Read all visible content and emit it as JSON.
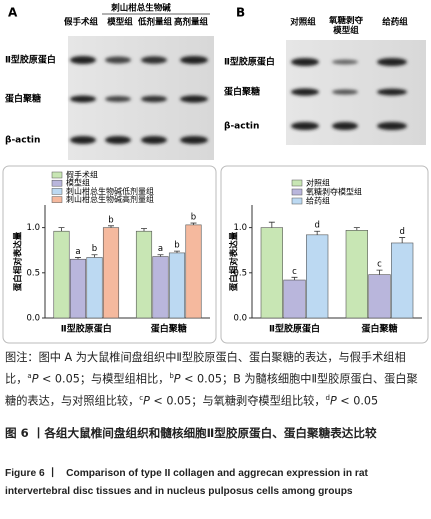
{
  "blots": [
    {
      "panel": "A",
      "header": "刺山柑总生物碱",
      "columns": [
        "假手术组",
        "模型组",
        "低剂量组",
        "高剂量组"
      ],
      "rows": [
        "Ⅱ型胶原蛋白",
        "蛋白聚糖",
        "β-actin"
      ]
    },
    {
      "panel": "B",
      "columns": [
        "对照组",
        "氧糖剥夺模型组",
        "给药组"
      ],
      "rows": [
        "Ⅱ型胶原蛋白",
        "蛋白聚糖",
        "β-actin"
      ]
    }
  ],
  "chart_data": [
    {
      "type": "bar",
      "ylabel": "蛋白相对表达量",
      "categories": [
        "Ⅱ型胶原蛋白",
        "蛋白聚糖"
      ],
      "ylim": [
        0,
        1.25
      ],
      "yticks": [
        {
          "value": 0,
          "label": "0.0"
        },
        {
          "value": 0.5,
          "label": "0.5"
        },
        {
          "value": 1,
          "label": "1.0"
        }
      ],
      "series": [
        {
          "name": "假手术组",
          "color": "#c8e6b4",
          "values": [
            0.96,
            0.96
          ],
          "errors": [
            0.04,
            0.03
          ]
        },
        {
          "name": "模型组",
          "color": "#b9b6dc",
          "values": [
            0.65,
            0.68
          ],
          "errors": [
            0.02,
            0.02
          ],
          "labels": [
            "a",
            "a"
          ]
        },
        {
          "name": "刺山柑总生物碱低剂量组",
          "color": "#bcd9f2",
          "values": [
            0.67,
            0.72
          ],
          "errors": [
            0.03,
            0.02
          ],
          "labels": [
            "b",
            "b"
          ]
        },
        {
          "name": "刺山柑总生物碱高剂量组",
          "color": "#f5b99e",
          "values": [
            1.0,
            1.03
          ],
          "errors": [
            0.02,
            0.02
          ],
          "labels": [
            "b",
            "b"
          ]
        }
      ]
    },
    {
      "type": "bar",
      "ylabel": "蛋白相对表达量",
      "categories": [
        "Ⅱ型胶原蛋白",
        "蛋白聚糖"
      ],
      "ylim": [
        0,
        1.25
      ],
      "yticks": [
        {
          "value": 0,
          "label": "0.0"
        },
        {
          "value": 0.5,
          "label": "0.5"
        },
        {
          "value": 1,
          "label": "1.0"
        }
      ],
      "series": [
        {
          "name": "对照组",
          "color": "#c8e6b4",
          "values": [
            1.0,
            0.97
          ],
          "errors": [
            0.06,
            0.03
          ]
        },
        {
          "name": "氧糖剥夺模型组",
          "color": "#b9b6dc",
          "values": [
            0.42,
            0.48
          ],
          "errors": [
            0.03,
            0.05
          ],
          "labels": [
            "c",
            "c"
          ]
        },
        {
          "name": "给药组",
          "color": "#bcd9f2",
          "values": [
            0.92,
            0.83
          ],
          "errors": [
            0.04,
            0.06
          ],
          "labels": [
            "d",
            "d"
          ]
        }
      ]
    }
  ],
  "caption": {
    "note": [
      "图注：图中 A 为大鼠椎间盘组织中Ⅱ型胶原蛋白、蛋白聚糖的表达，与假手术组相比，",
      "a",
      "P",
      " < 0.05；与模型组相比，",
      "b",
      "P",
      " < 0.05；B 为髓核细胞中Ⅱ型胶原蛋白、蛋白聚糖的表达，与对照组比较，",
      "c",
      "P",
      " < 0.05；与氧糖剥夺模型组比较，",
      "d",
      "P",
      " < 0.05"
    ],
    "title_cn": "图 6 丨各组大鼠椎间盘组织和髓核细胞Ⅱ型胶原蛋白、蛋白聚糖表达比较",
    "title_en_label": "Figure 6 丨",
    "title_en": "Comparison of type II collagen and aggrecan expression in rat intervertebral disc tissues and in nucleus pulposus cells among groups"
  }
}
